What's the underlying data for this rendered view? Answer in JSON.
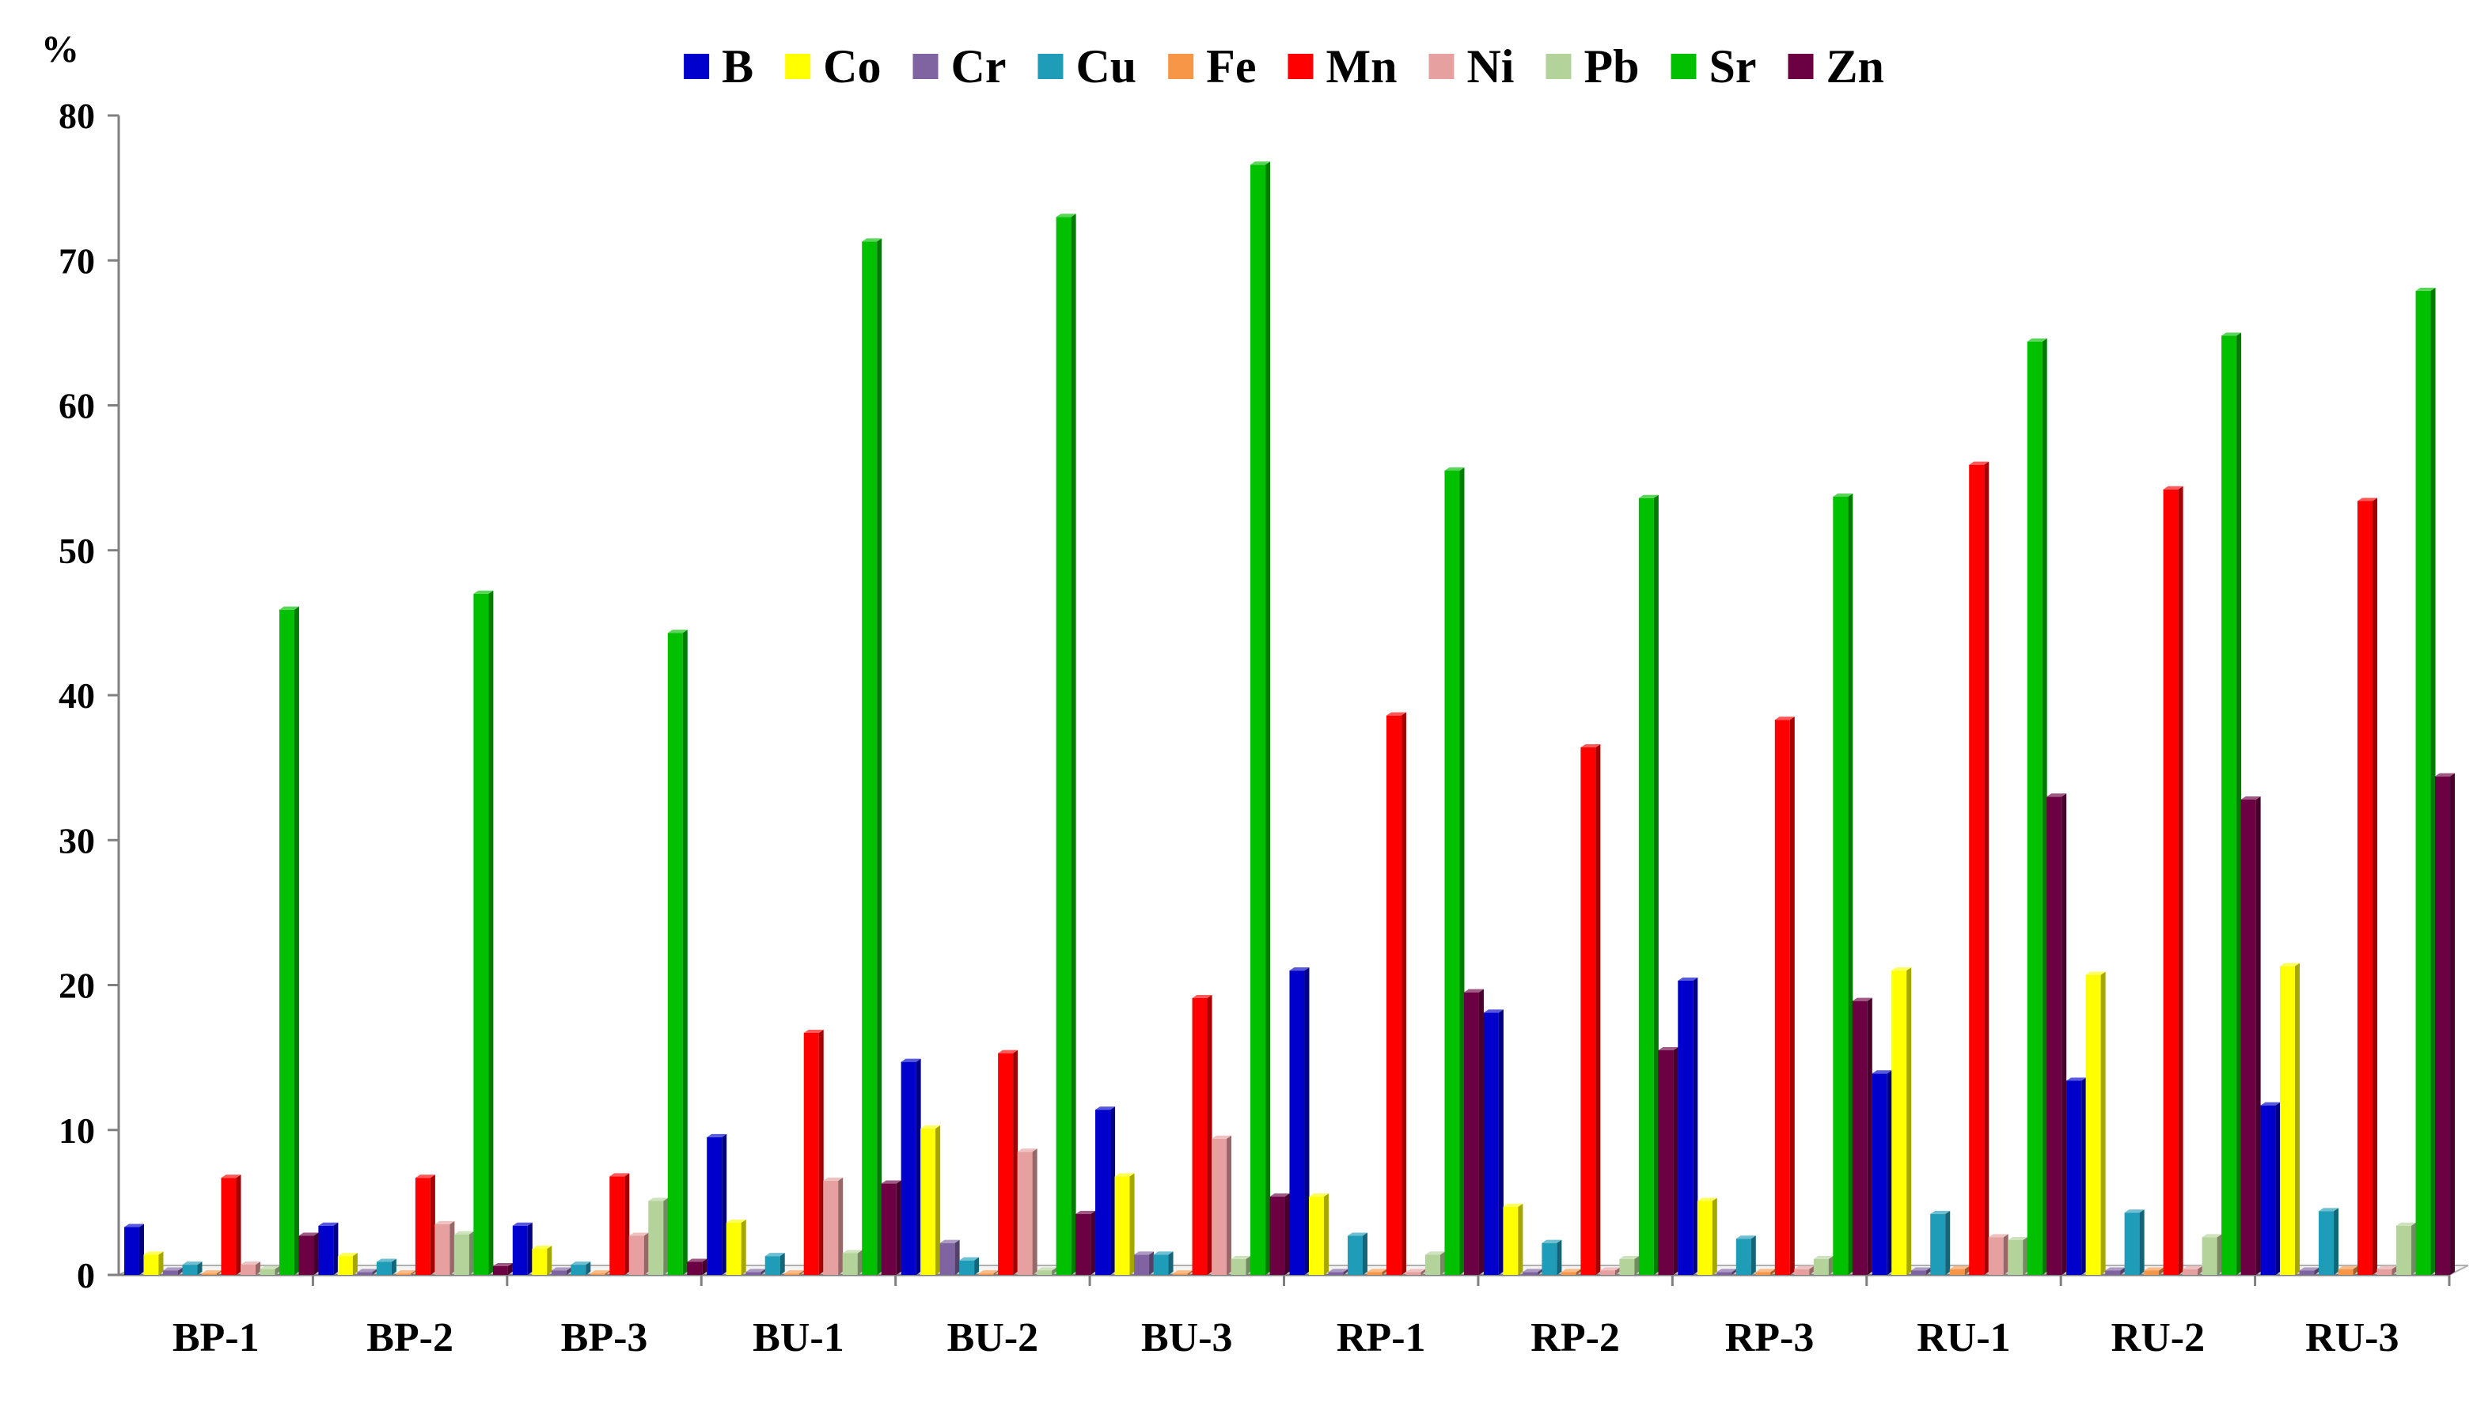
{
  "chart_data": {
    "type": "bar",
    "title": "",
    "xlabel": "",
    "ylabel": "%",
    "ylim": [
      0,
      80
    ],
    "yticks": [
      0,
      10,
      20,
      30,
      40,
      50,
      60,
      70,
      80
    ],
    "grid": false,
    "legend_position": "top",
    "style": "3d",
    "categories": [
      "BP-1",
      "BP-2",
      "BP-3",
      "BU-1",
      "BU-2",
      "BU-3",
      "RP-1",
      "RP-2",
      "RP-3",
      "RU-1",
      "RU-2",
      "RU-3"
    ],
    "series": [
      {
        "name": "B",
        "color": "#0000cc",
        "values": [
          3.3,
          3.4,
          3.4,
          9.5,
          14.7,
          11.4,
          21.0,
          18.1,
          20.3,
          13.9,
          13.4,
          11.7
        ]
      },
      {
        "name": "Co",
        "color": "#ffff00",
        "values": [
          1.4,
          1.3,
          1.8,
          3.6,
          10.1,
          6.8,
          5.4,
          4.7,
          5.1,
          21.0,
          20.7,
          21.3
        ]
      },
      {
        "name": "Cr",
        "color": "#8064a2",
        "values": [
          0.3,
          0.2,
          0.3,
          0.2,
          2.2,
          1.4,
          0.2,
          0.2,
          0.2,
          0.3,
          0.3,
          0.3
        ]
      },
      {
        "name": "Cu",
        "color": "#1e9cb8",
        "values": [
          0.7,
          0.9,
          0.7,
          1.3,
          1.0,
          1.4,
          2.7,
          2.2,
          2.5,
          4.2,
          4.3,
          4.4
        ]
      },
      {
        "name": "Fe",
        "color": "#f79646",
        "values": [
          0.1,
          0.1,
          0.1,
          0.1,
          0.1,
          0.1,
          0.2,
          0.2,
          0.2,
          0.4,
          0.3,
          0.4
        ]
      },
      {
        "name": "Mn",
        "color": "#ff0000",
        "values": [
          6.7,
          6.7,
          6.8,
          16.7,
          15.3,
          19.1,
          38.6,
          36.4,
          38.3,
          55.9,
          54.2,
          53.4
        ]
      },
      {
        "name": "Ni",
        "color": "#e6a0a0",
        "values": [
          0.7,
          3.5,
          2.7,
          6.5,
          8.5,
          9.4,
          0.2,
          0.3,
          0.4,
          2.6,
          0.4,
          0.4
        ]
      },
      {
        "name": "Pb",
        "color": "#b4d39a",
        "values": [
          0.4,
          2.8,
          5.1,
          1.5,
          0.3,
          1.1,
          1.4,
          1.1,
          1.1,
          2.4,
          2.6,
          3.4
        ]
      },
      {
        "name": "Sr",
        "color": "#00c000",
        "values": [
          45.9,
          47.0,
          44.3,
          71.3,
          73.0,
          76.6,
          55.5,
          53.6,
          53.7,
          64.4,
          64.8,
          67.9
        ]
      },
      {
        "name": "Zn",
        "color": "#6b0042",
        "values": [
          2.7,
          0.6,
          0.9,
          6.3,
          4.2,
          5.4,
          19.5,
          15.5,
          18.9,
          33.0,
          32.8,
          34.4
        ]
      }
    ]
  }
}
